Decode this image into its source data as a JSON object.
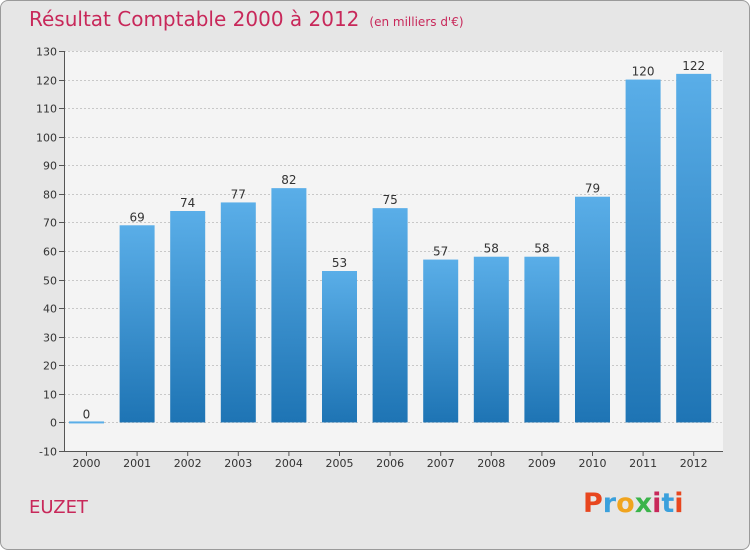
{
  "header": {
    "title": "Résultat Comptable 2000 à 2012",
    "subtitle": "(en milliers d'€)"
  },
  "footer": {
    "place": "EUZET",
    "brand": "Proxiti",
    "brand_colors": [
      "#e8461e",
      "#3aa0dc",
      "#f0a41e",
      "#3ab44a",
      "#c8285a",
      "#3aa0dc",
      "#e8461e"
    ]
  },
  "colors": {
    "bar_light": "#5aaee8",
    "bar_dark": "#1e74b4",
    "axis_text": "#333333",
    "grid": "#c8c8c8",
    "accent": "#c8285a"
  },
  "chart_data": {
    "type": "bar",
    "title": "Résultat Comptable 2000 à 2012",
    "subtitle": "(en milliers d'€)",
    "categories": [
      "2000",
      "2001",
      "2002",
      "2003",
      "2004",
      "2005",
      "2006",
      "2007",
      "2008",
      "2009",
      "2010",
      "2011",
      "2012"
    ],
    "values": [
      0,
      69,
      74,
      77,
      82,
      53,
      75,
      57,
      58,
      58,
      79,
      120,
      122
    ],
    "ylim": [
      -10,
      130
    ],
    "yticks": [
      -10,
      0,
      10,
      20,
      30,
      40,
      50,
      60,
      70,
      80,
      90,
      100,
      110,
      120,
      130
    ],
    "xlabel": "",
    "ylabel": "",
    "grid": true
  }
}
